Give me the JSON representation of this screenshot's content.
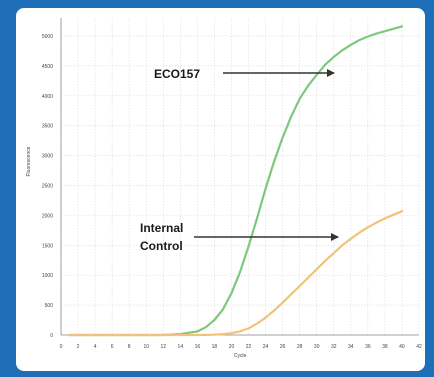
{
  "chart_data": {
    "type": "line",
    "xlabel": "Cycle",
    "ylabel": "Fluorescence",
    "xlim": [
      0,
      42
    ],
    "ylim": [
      0,
      5300
    ],
    "grid": true,
    "x_ticks": [
      0,
      2,
      4,
      6,
      8,
      10,
      12,
      14,
      16,
      18,
      20,
      22,
      24,
      26,
      28,
      30,
      32,
      34,
      36,
      38,
      40,
      42
    ],
    "x_tick_labels": [
      "0",
      "2",
      "4",
      "6",
      "8",
      "10",
      "12",
      "14",
      "16",
      "18",
      "20",
      "22",
      "24",
      "26",
      "28",
      "30",
      "32",
      "34",
      "36",
      "38",
      "40",
      "42"
    ],
    "y_ticks": [
      0,
      500,
      1000,
      1500,
      2000,
      2500,
      3000,
      3500,
      4000,
      4500,
      5000
    ],
    "y_tick_labels": [
      "0",
      "500",
      "1000",
      "1500",
      "2000",
      "2500",
      "3000",
      "3500",
      "4000",
      "4500",
      "5000"
    ],
    "series": [
      {
        "name": "ECO157",
        "color": "#7ec87b",
        "x": [
          1,
          4,
          8,
          12,
          14,
          16,
          17,
          18,
          19,
          20,
          21,
          22,
          23,
          24,
          25,
          26,
          27,
          28,
          29,
          30,
          31,
          32,
          33,
          34,
          35,
          36,
          37,
          38,
          39,
          40
        ],
        "y": [
          0,
          0,
          0,
          0,
          15,
          60,
          130,
          250,
          430,
          700,
          1050,
          1480,
          1950,
          2450,
          2900,
          3300,
          3650,
          3950,
          4170,
          4350,
          4520,
          4650,
          4760,
          4850,
          4930,
          4990,
          5040,
          5080,
          5120,
          5160
        ]
      },
      {
        "name": "Internal Control",
        "color": "#f2c27a",
        "x": [
          1,
          4,
          8,
          12,
          16,
          18,
          19,
          20,
          21,
          22,
          23,
          24,
          25,
          26,
          27,
          28,
          29,
          30,
          31,
          32,
          33,
          34,
          35,
          36,
          37,
          38,
          39,
          40
        ],
        "y": [
          0,
          0,
          0,
          0,
          0,
          5,
          15,
          30,
          60,
          110,
          190,
          290,
          410,
          540,
          680,
          820,
          960,
          1100,
          1240,
          1370,
          1500,
          1610,
          1710,
          1800,
          1880,
          1950,
          2010,
          2070
        ]
      }
    ],
    "annotations": [
      {
        "text": "ECO157",
        "target_series": "ECO157"
      },
      {
        "text": "Internal\nControl",
        "lines": [
          "Internal",
          "Control"
        ],
        "target_series": "Internal Control"
      }
    ]
  }
}
